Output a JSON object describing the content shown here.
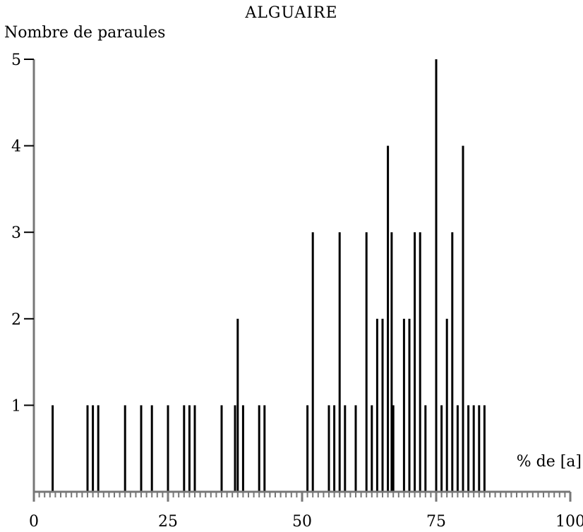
{
  "chart_data": {
    "type": "bar",
    "title": "ALGUAIRE",
    "ylabel": "Nombre de paraules",
    "xlabel": "% de [a]",
    "xlim": [
      0,
      100
    ],
    "ylim": [
      0,
      5
    ],
    "x_ticks": [
      0,
      25,
      50,
      75,
      100
    ],
    "y_ticks": [
      1,
      2,
      3,
      4,
      5
    ],
    "grid": false,
    "bar_color": "#000000",
    "axis_color": "#777777",
    "points": [
      {
        "x": 0,
        "y": 1
      },
      {
        "x": 3.5,
        "y": 1
      },
      {
        "x": 10,
        "y": 1
      },
      {
        "x": 11,
        "y": 1
      },
      {
        "x": 12,
        "y": 1
      },
      {
        "x": 17,
        "y": 1
      },
      {
        "x": 20,
        "y": 1
      },
      {
        "x": 22,
        "y": 1
      },
      {
        "x": 25,
        "y": 1
      },
      {
        "x": 28,
        "y": 1
      },
      {
        "x": 29,
        "y": 1
      },
      {
        "x": 30,
        "y": 1
      },
      {
        "x": 35,
        "y": 1
      },
      {
        "x": 37.5,
        "y": 1
      },
      {
        "x": 38,
        "y": 2
      },
      {
        "x": 39,
        "y": 1
      },
      {
        "x": 42,
        "y": 1
      },
      {
        "x": 43,
        "y": 1
      },
      {
        "x": 51,
        "y": 1
      },
      {
        "x": 52,
        "y": 3
      },
      {
        "x": 55,
        "y": 1
      },
      {
        "x": 56,
        "y": 1
      },
      {
        "x": 57,
        "y": 3
      },
      {
        "x": 58,
        "y": 1
      },
      {
        "x": 60,
        "y": 1
      },
      {
        "x": 62,
        "y": 3
      },
      {
        "x": 63,
        "y": 1
      },
      {
        "x": 64,
        "y": 2
      },
      {
        "x": 65,
        "y": 2
      },
      {
        "x": 66,
        "y": 4
      },
      {
        "x": 66.7,
        "y": 3
      },
      {
        "x": 67,
        "y": 1
      },
      {
        "x": 69,
        "y": 2
      },
      {
        "x": 70,
        "y": 2
      },
      {
        "x": 71,
        "y": 3
      },
      {
        "x": 72,
        "y": 3
      },
      {
        "x": 73,
        "y": 1
      },
      {
        "x": 75,
        "y": 5
      },
      {
        "x": 76,
        "y": 1
      },
      {
        "x": 77,
        "y": 2
      },
      {
        "x": 78,
        "y": 3
      },
      {
        "x": 79,
        "y": 1
      },
      {
        "x": 80,
        "y": 4
      },
      {
        "x": 81,
        "y": 1
      },
      {
        "x": 82,
        "y": 1
      },
      {
        "x": 83,
        "y": 1
      },
      {
        "x": 84,
        "y": 1
      }
    ]
  }
}
